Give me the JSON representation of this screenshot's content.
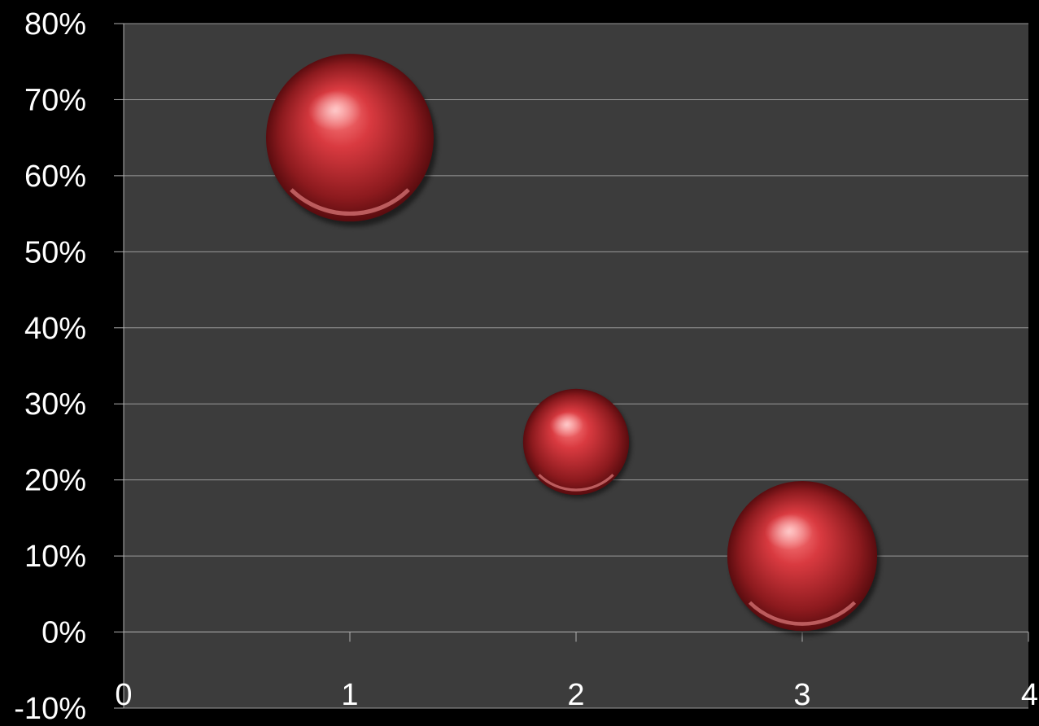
{
  "chart_data": {
    "type": "bubble",
    "title": "",
    "xlabel": "",
    "ylabel": "",
    "xlim": [
      0,
      4
    ],
    "ylim": [
      -0.1,
      0.8
    ],
    "x_ticks": [
      0,
      1,
      2,
      3,
      4
    ],
    "x_tick_labels": [
      "0",
      "1",
      "2",
      "3",
      "4"
    ],
    "y_ticks": [
      -0.1,
      0,
      0.1,
      0.2,
      0.3,
      0.4,
      0.5,
      0.6,
      0.7,
      0.8
    ],
    "y_tick_labels": [
      "-10%",
      "0%",
      "10%",
      "20%",
      "30%",
      "40%",
      "50%",
      "60%",
      "70%",
      "80%"
    ],
    "grid": true,
    "series": [
      {
        "points": [
          {
            "x": 1,
            "y": 0.65,
            "size": 100
          },
          {
            "x": 2,
            "y": 0.25,
            "size": 40
          },
          {
            "x": 3,
            "y": 0.1,
            "size": 80
          }
        ]
      }
    ],
    "colors": {
      "background": "#000000",
      "plot_area": "#3c3c3c",
      "gridline": "#9a9a9a",
      "bubble": "#c0272d",
      "bubble_highlight": "#ff6b6b",
      "bubble_shadow": "#4a0a0c",
      "text": "#ffffff"
    }
  }
}
